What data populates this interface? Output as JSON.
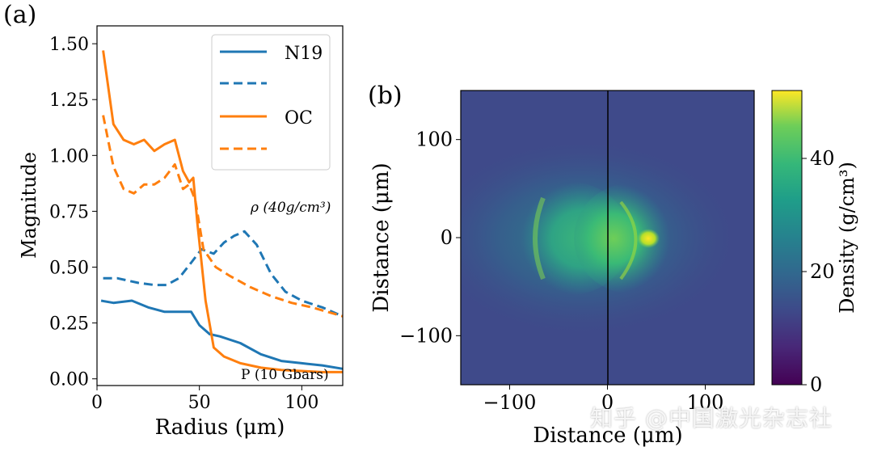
{
  "watermark": "知乎 @中国激光杂志社",
  "chart_data": [
    {
      "type": "line",
      "panel_label": "(a)",
      "xlabel": "Radius (μm)",
      "ylabel": "Magnitude",
      "xlim": [
        0,
        120
      ],
      "ylim": [
        -0.03,
        1.58
      ],
      "xticks": [
        0,
        50,
        100
      ],
      "yticks": [
        "0.00",
        "0.25",
        "0.50",
        "0.75",
        "1.00",
        "1.25",
        "1.50"
      ],
      "grid": false,
      "legend": {
        "position": "top-right",
        "entries": [
          "N19",
          "",
          "OC",
          ""
        ]
      },
      "annotations": {
        "density": "ρ (40g/cm³)",
        "pressure": "P (10 Gbars)"
      },
      "series": [
        {
          "name": "N19",
          "color": "#1f77b4",
          "style": "solid",
          "quantity": "pressure",
          "x": [
            2,
            8,
            17,
            25,
            33,
            38,
            46,
            50,
            55,
            60,
            70,
            80,
            90,
            100,
            110,
            120
          ],
          "y": [
            0.35,
            0.34,
            0.35,
            0.32,
            0.3,
            0.3,
            0.3,
            0.24,
            0.2,
            0.19,
            0.16,
            0.11,
            0.08,
            0.07,
            0.06,
            0.045
          ]
        },
        {
          "name": "",
          "color": "#1f77b4",
          "style": "dashed",
          "quantity": "density",
          "x": [
            3,
            10,
            20,
            28,
            34,
            40,
            46,
            51,
            57,
            62,
            67,
            72,
            78,
            85,
            92,
            100,
            110,
            120
          ],
          "y": [
            0.45,
            0.45,
            0.43,
            0.42,
            0.42,
            0.45,
            0.52,
            0.58,
            0.56,
            0.61,
            0.64,
            0.66,
            0.6,
            0.47,
            0.39,
            0.35,
            0.32,
            0.28
          ]
        },
        {
          "name": "OC",
          "color": "#ff7f0e",
          "style": "solid",
          "quantity": "pressure",
          "x": [
            3,
            8,
            13,
            18,
            23,
            28,
            33,
            38,
            42,
            45,
            47,
            49,
            53,
            57,
            62,
            70,
            80,
            90,
            100,
            110,
            120
          ],
          "y": [
            1.47,
            1.14,
            1.07,
            1.05,
            1.07,
            1.02,
            1.05,
            1.07,
            0.93,
            0.88,
            0.9,
            0.7,
            0.35,
            0.14,
            0.1,
            0.07,
            0.05,
            0.04,
            0.035,
            0.03,
            0.03
          ]
        },
        {
          "name": "",
          "color": "#ff7f0e",
          "style": "dashed",
          "quantity": "density",
          "x": [
            3,
            8,
            13,
            18,
            23,
            28,
            33,
            38,
            42,
            45,
            48,
            52,
            58,
            65,
            75,
            85,
            95,
            105,
            120
          ],
          "y": [
            1.18,
            0.95,
            0.85,
            0.83,
            0.87,
            0.87,
            0.9,
            0.96,
            0.85,
            0.87,
            0.8,
            0.58,
            0.5,
            0.46,
            0.41,
            0.37,
            0.34,
            0.32,
            0.28
          ]
        }
      ]
    },
    {
      "type": "heatmap",
      "panel_label": "(b)",
      "xlabel": "Distance (μm)",
      "ylabel": "Distance (μm)",
      "xlim": [
        -150,
        150
      ],
      "ylim": [
        -150,
        150
      ],
      "xticks": [
        "−100",
        "0",
        "100"
      ],
      "yticks": [
        "100",
        "0",
        "−100"
      ],
      "colormap": "viridis",
      "colorbar": {
        "label": "Density (g/cm³)",
        "range": [
          0,
          52
        ],
        "ticks": [
          "0",
          "20",
          "40"
        ]
      },
      "divider_x": 0
    }
  ]
}
